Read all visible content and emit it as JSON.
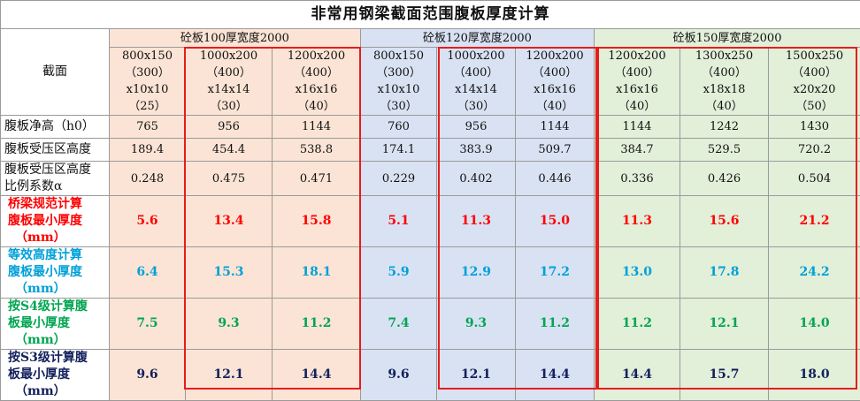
{
  "title": "非常用钢梁截面范围腹板厚度计算",
  "groups": [
    {
      "label": "砼板100厚宽度2000",
      "color": "#fbe4d5"
    },
    {
      "label": "砼板120厚宽度2000",
      "color": "#d9e2f3"
    },
    {
      "label": "砼板150厚宽度2000",
      "color": "#e2efd9"
    }
  ],
  "row_labels": {
    "section": "截面",
    "h0": "腹板净高（h0）",
    "compress": "腹板受压区高度",
    "alpha_1": "腹板受压区高度",
    "alpha_2": "比例系数α",
    "bridge": [
      "桥梁规范计算",
      "腹板最小厚度",
      "（mm）"
    ],
    "equiv": [
      "等效高度计算",
      "腹板最小厚度",
      "（mm）"
    ],
    "s4": [
      "按S4级计算腹",
      "板最小厚度",
      "（mm）"
    ],
    "s3": [
      "按S3级计算腹",
      "板最小厚度",
      "（mm）"
    ]
  },
  "sections": [
    [
      "800x150",
      "（300）",
      "x10x10",
      "（25）"
    ],
    [
      "1000x200",
      "（400）",
      "x14x14",
      "（30）"
    ],
    [
      "1200x200",
      "（400）",
      "x16x16",
      "（40）"
    ],
    [
      "800x150",
      "（300）",
      "x10x10",
      "（30）"
    ],
    [
      "1000x200",
      "（400）",
      "x14x14",
      "（30）"
    ],
    [
      "1200x200",
      "（400）",
      "x16x16",
      "（40）"
    ],
    [
      "1200x200",
      "（400）",
      "x16x16",
      "（40）"
    ],
    [
      "1300x250",
      "（400）",
      "x18x18",
      "（40）"
    ],
    [
      "1500x250",
      "（400）",
      "x20x20",
      "（50）"
    ]
  ],
  "h0": [
    "765",
    "956",
    "1144",
    "760",
    "956",
    "1144",
    "1144",
    "1242",
    "1430"
  ],
  "compress": [
    "189.4",
    "454.4",
    "538.8",
    "174.1",
    "383.9",
    "509.7",
    "384.7",
    "529.5",
    "720.2"
  ],
  "alpha": [
    "0.248",
    "0.475",
    "0.471",
    "0.229",
    "0.402",
    "0.446",
    "0.336",
    "0.426",
    "0.504"
  ],
  "bridge": [
    "5.6",
    "13.4",
    "15.8",
    "5.1",
    "11.3",
    "15.0",
    "11.3",
    "15.6",
    "21.2"
  ],
  "equiv": [
    "6.4",
    "15.3",
    "18.1",
    "5.9",
    "12.9",
    "17.2",
    "13.0",
    "17.8",
    "24.2"
  ],
  "s4": [
    "7.5",
    "9.3",
    "11.2",
    "7.4",
    "9.3",
    "11.2",
    "11.2",
    "12.1",
    "14.0"
  ],
  "s3": [
    "9.6",
    "12.1",
    "14.4",
    "9.6",
    "12.1",
    "14.4",
    "14.4",
    "15.7",
    "18.0"
  ],
  "colors": {
    "bridge": "#ff0000",
    "equiv": "#00a0d8",
    "s4": "#00a550",
    "s3": "#12205c",
    "highlight_box": "#e81c1c"
  }
}
